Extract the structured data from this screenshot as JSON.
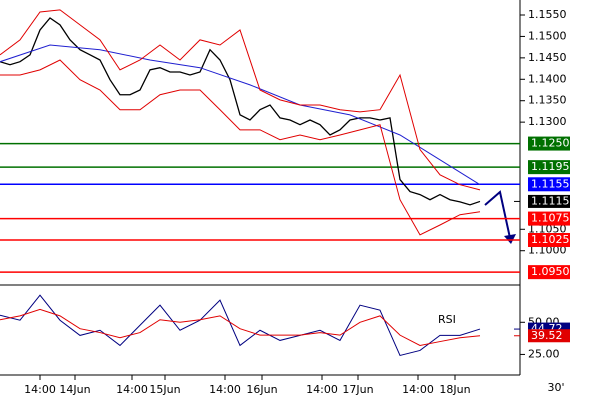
{
  "chart_data": [
    {
      "type": "line",
      "ylim": [
        1.092,
        1.1585
      ],
      "yticks": [
        {
          "value": 1.155,
          "label": "1.1550"
        },
        {
          "value": 1.15,
          "label": "1.1500"
        },
        {
          "value": 1.145,
          "label": "1.1450"
        },
        {
          "value": 1.14,
          "label": "1.1400"
        },
        {
          "value": 1.135,
          "label": "1.1350"
        },
        {
          "value": 1.13,
          "label": "1.1300"
        },
        {
          "value": 1.105,
          "label": "1.1050"
        },
        {
          "value": 1.1,
          "label": "1.1000"
        }
      ],
      "xlim": [
        0,
        520
      ],
      "series": [
        {
          "color": "#000000",
          "x": [
            0,
            10,
            20,
            30,
            40,
            50,
            60,
            70,
            80,
            90,
            100,
            110,
            120,
            130,
            140,
            150,
            160,
            170,
            180,
            190,
            200,
            210,
            220,
            230,
            240,
            250,
            260,
            270,
            280,
            290,
            300,
            310,
            320,
            330,
            340,
            350,
            360,
            370,
            380,
            390,
            400,
            410,
            420,
            430,
            440,
            450,
            460,
            470,
            480
          ],
          "values": [
            1.1441,
            1.1434,
            1.1441,
            1.1457,
            1.1515,
            1.1543,
            1.1527,
            1.1492,
            1.1469,
            1.1457,
            1.1445,
            1.1399,
            1.1364,
            1.1364,
            1.1375,
            1.1422,
            1.1427,
            1.1417,
            1.1417,
            1.141,
            1.1417,
            1.1469,
            1.1445,
            1.1399,
            1.1317,
            1.1305,
            1.1329,
            1.134,
            1.131,
            1.1305,
            1.1294,
            1.1305,
            1.1294,
            1.127,
            1.1282,
            1.1305,
            1.131,
            1.131,
            1.1305,
            1.131,
            1.1166,
            1.1138,
            1.1131,
            1.1119,
            1.1131,
            1.1119,
            1.1114,
            1.1107,
            1.1115
          ]
        },
        {
          "color": "#2020d0",
          "x": [
            0,
            50,
            100,
            150,
            200,
            250,
            300,
            350,
            400,
            440,
            480
          ],
          "values": [
            1.1441,
            1.148,
            1.1469,
            1.1445,
            1.1427,
            1.1387,
            1.134,
            1.1317,
            1.127,
            1.1212,
            1.1154
          ]
        },
        {
          "color": "#e00000",
          "x": [
            0,
            20,
            40,
            60,
            80,
            100,
            120,
            140,
            160,
            180,
            200,
            220,
            240,
            260,
            280,
            300,
            320,
            340,
            360,
            380,
            400,
            420,
            440,
            460,
            480
          ],
          "values": [
            1.1457,
            1.1492,
            1.1557,
            1.1562,
            1.1527,
            1.1492,
            1.1422,
            1.1445,
            1.148,
            1.1445,
            1.1492,
            1.148,
            1.1515,
            1.1375,
            1.1352,
            1.134,
            1.134,
            1.1329,
            1.1324,
            1.1329,
            1.141,
            1.1236,
            1.1177,
            1.1154,
            1.1142
          ]
        },
        {
          "color": "#e00000",
          "x": [
            0,
            20,
            40,
            60,
            80,
            100,
            120,
            140,
            160,
            180,
            200,
            220,
            240,
            260,
            280,
            300,
            320,
            340,
            360,
            380,
            400,
            420,
            440,
            460,
            480
          ],
          "values": [
            1.141,
            1.141,
            1.1422,
            1.1445,
            1.1399,
            1.1375,
            1.1329,
            1.1329,
            1.1364,
            1.1375,
            1.1375,
            1.1329,
            1.1282,
            1.1282,
            1.1259,
            1.127,
            1.1259,
            1.127,
            1.1282,
            1.1294,
            1.1119,
            1.1037,
            1.106,
            1.1084,
            1.1091
          ]
        }
      ],
      "levels": [
        {
          "value": 1.125,
          "label": "1.1250",
          "color": "#007000"
        },
        {
          "value": 1.1195,
          "label": "1.1195",
          "color": "#007000"
        },
        {
          "value": 1.1155,
          "label": "1.1155",
          "color": "#0000ff"
        },
        {
          "value": 1.1075,
          "label": "1.1075",
          "color": "#ff0000"
        },
        {
          "value": 1.1025,
          "label": "1.1025",
          "color": "#ff0000"
        },
        {
          "value": 1.095,
          "label": "1.0950",
          "color": "#ff0000"
        }
      ]
    },
    {
      "type": "line",
      "annotation": "RSI",
      "timeframe": "30'",
      "ylim": [
        9,
        79
      ],
      "yticks": [
        {
          "value": 50,
          "label": "50.00"
        },
        {
          "value": 25,
          "label": "25.00"
        }
      ],
      "xlim": [
        0,
        520
      ],
      "xticks": [
        {
          "value": 40,
          "label": "14:00"
        },
        {
          "value": 75,
          "label": "14Jun"
        },
        {
          "value": 132,
          "label": "14:00"
        },
        {
          "value": 165,
          "label": "15Jun"
        },
        {
          "value": 225,
          "label": "14:00"
        },
        {
          "value": 262,
          "label": "16Jun"
        },
        {
          "value": 322,
          "label": "14:00"
        },
        {
          "value": 358,
          "label": "17Jun"
        },
        {
          "value": 418,
          "label": "14:00"
        },
        {
          "value": 455,
          "label": "18Jun"
        }
      ],
      "series": [
        {
          "color": "#000080",
          "x": [
            0,
            20,
            40,
            60,
            80,
            100,
            120,
            140,
            160,
            180,
            200,
            220,
            240,
            260,
            280,
            300,
            320,
            340,
            360,
            380,
            400,
            420,
            440,
            460,
            480
          ],
          "values": [
            55.5,
            51.6,
            71.1,
            51.6,
            39.8,
            43.8,
            32,
            47.7,
            63.3,
            43.8,
            51.6,
            67.2,
            32,
            43.8,
            35.9,
            39.8,
            43.8,
            35.9,
            63.3,
            59.4,
            24.2,
            28.1,
            39.8,
            39.8,
            44.72
          ]
        },
        {
          "color": "#e00000",
          "x": [
            0,
            20,
            40,
            60,
            80,
            100,
            120,
            140,
            160,
            180,
            200,
            220,
            240,
            260,
            280,
            300,
            320,
            340,
            360,
            380,
            400,
            420,
            440,
            460,
            480
          ],
          "values": [
            52,
            55,
            60,
            55,
            45,
            42,
            38,
            42,
            52,
            50,
            52,
            55,
            45,
            40,
            40,
            40,
            42,
            40,
            50,
            55,
            40,
            32,
            35,
            38,
            39.52
          ]
        }
      ]
    }
  ]
}
